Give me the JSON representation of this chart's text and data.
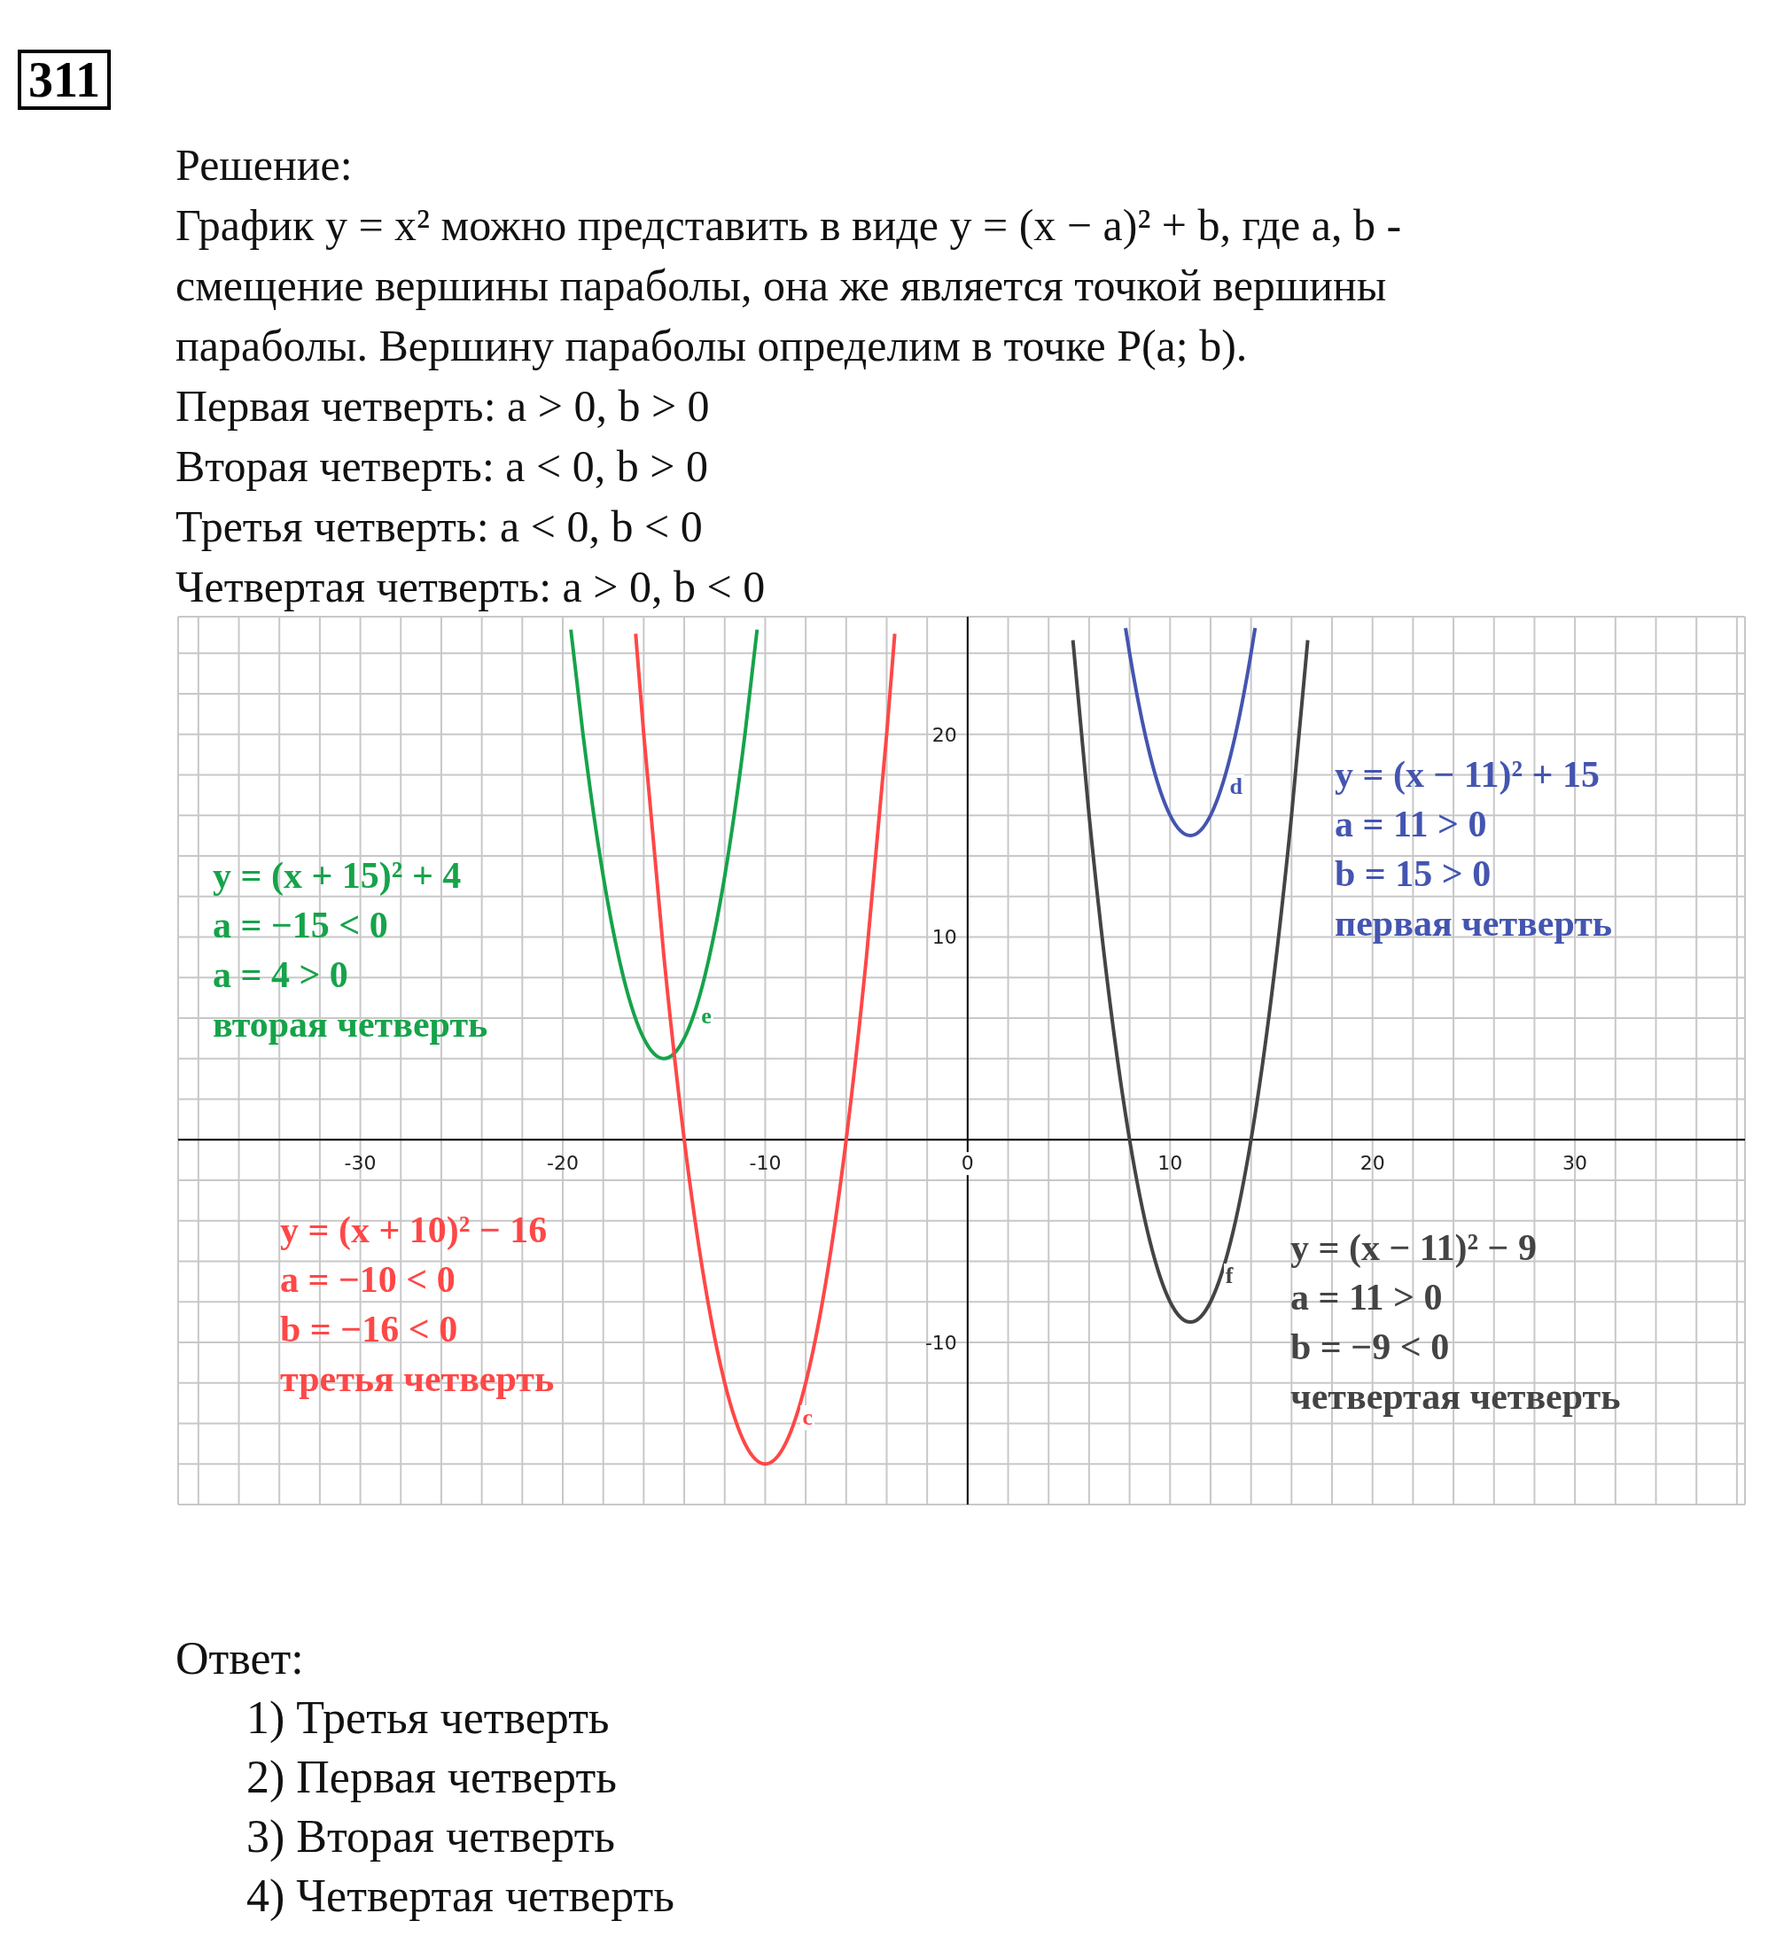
{
  "chart_data": {
    "type": "line",
    "title": "311",
    "subtitle": "Решение:\nГрафик y = x² можно представить в виде y = (x − a)² + b, где a, b -\nсмещение вершины параболы, она же является точкой вершины\nпараболы. Вершину параболы определим в точке P(a; b).\nПервая четверть: a > 0, b > 0\nВторая четверть: a < 0, b > 0\nТретья четверть: a < 0, b < 0\nЧетвертая четверть: a > 0, b < 0",
    "series": [
      {
        "color": "#16a34a",
        "x": [
          -19.6,
          -19,
          -18,
          -17,
          -16,
          -15,
          -14,
          -13,
          -12,
          -11,
          -10.4
        ],
        "values": [
          25.16,
          20,
          13,
          8,
          5,
          4,
          5,
          8,
          13,
          20,
          25.16
        ]
      },
      {
        "color": "#ff4747",
        "x": [
          -16.4,
          -16,
          -15,
          -14,
          -13,
          -12,
          -11,
          -10,
          -9,
          -8,
          -7,
          -6,
          -5,
          -4,
          -3.6
        ],
        "values": [
          24.96,
          20,
          9,
          0,
          -7,
          -12,
          -15,
          -16,
          -15,
          -12,
          -7,
          0,
          9,
          20,
          24.96
        ]
      },
      {
        "color": "#4455b0",
        "x": [
          7.8,
          8,
          9,
          10,
          11,
          12,
          13,
          14,
          14.2
        ],
        "values": [
          25.24,
          24,
          19,
          16,
          15,
          16,
          19,
          24,
          25.24
        ]
      },
      {
        "color": "#444444",
        "x": [
          5.2,
          6,
          7,
          8,
          9,
          10,
          11,
          12,
          13,
          14,
          15,
          16,
          16.8
        ],
        "values": [
          24.64,
          16,
          7,
          0,
          -5,
          -8,
          -9,
          -8,
          -5,
          0,
          7,
          16,
          24.64
        ]
      }
    ],
    "annotations": [
      "y = (x + 15)² + 4\na = −15 < 0\na = 4 > 0\nвторая четверть",
      "y = (x + 10)² − 16\na = −10 < 0\nb = −16 < 0\nтретья четверть",
      "y = (x − 11)² + 15\na = 11 > 0\nb = 15 > 0\nпервая четверть",
      "y = (x − 11)² − 9\na = 11 > 0\nb = −9 < 0\nчетвертая четверть",
      {
        "text": "e",
        "x": -13.6,
        "y": 6
      },
      {
        "text": "c",
        "x": -8.6,
        "y": -13.8
      },
      {
        "text": "d",
        "x": 12.5,
        "y": 17.3
      },
      {
        "text": "f",
        "x": 12.3,
        "y": -6.8
      },
      "Ответ:\n1) Третья четверть\n2) Первая четверть\n3) Вторая четверть\n4) Четвертая четверть"
    ],
    "xlim": [
      -39,
      38.4
    ],
    "ylim": [
      -18,
      25.8
    ],
    "xticks": [
      {
        "value": -38,
        "label": null
      },
      {
        "value": -36,
        "label": null
      },
      {
        "value": -34,
        "label": null
      },
      {
        "value": -32,
        "label": null
      },
      -30,
      {
        "value": -28,
        "label": null
      },
      {
        "value": -26,
        "label": null
      },
      {
        "value": -24,
        "label": null
      },
      {
        "value": -22,
        "label": null
      },
      -20,
      {
        "value": -18,
        "label": null
      },
      {
        "value": -16,
        "label": null
      },
      {
        "value": -14,
        "label": null
      },
      {
        "value": -12,
        "label": null
      },
      -10,
      {
        "value": -8,
        "label": null
      },
      {
        "value": -6,
        "label": null
      },
      {
        "value": -4,
        "label": null
      },
      {
        "value": -2,
        "label": null
      },
      0,
      {
        "value": 2,
        "label": null
      },
      {
        "value": 4,
        "label": null
      },
      {
        "value": 6,
        "label": null
      },
      {
        "value": 8,
        "label": null
      },
      10,
      {
        "value": 12,
        "label": null
      },
      {
        "value": 14,
        "label": null
      },
      {
        "value": 16,
        "label": null
      },
      {
        "value": 18,
        "label": null
      },
      20,
      {
        "value": 22,
        "label": null
      },
      {
        "value": 24,
        "label": null
      },
      {
        "value": 26,
        "label": null
      },
      {
        "value": 28,
        "label": null
      },
      30,
      {
        "value": 32,
        "label": null
      },
      {
        "value": 34,
        "label": null
      },
      {
        "value": 36,
        "label": null
      },
      {
        "value": 38,
        "label": null
      }
    ],
    "yticks": [
      {
        "value": -18,
        "label": null
      },
      {
        "value": -16,
        "label": null
      },
      {
        "value": -14,
        "label": null
      },
      {
        "value": -12,
        "label": null
      },
      -10,
      {
        "value": -8,
        "label": null
      },
      {
        "value": -6,
        "label": null
      },
      {
        "value": -4,
        "label": null
      },
      {
        "value": -2,
        "label": null
      },
      {
        "value": 0,
        "label": null
      },
      {
        "value": 2,
        "label": null
      },
      {
        "value": 4,
        "label": null
      },
      {
        "value": 6,
        "label": null
      },
      {
        "value": 8,
        "label": null
      },
      10,
      {
        "value": 12,
        "label": null
      },
      {
        "value": 14,
        "label": null
      },
      {
        "value": 16,
        "label": null
      },
      {
        "value": 18,
        "label": null
      },
      20,
      {
        "value": 22,
        "label": null
      },
      {
        "value": 24,
        "label": null
      }
    ],
    "grid": true,
    "marker": "none",
    "line_style": "solid"
  }
}
